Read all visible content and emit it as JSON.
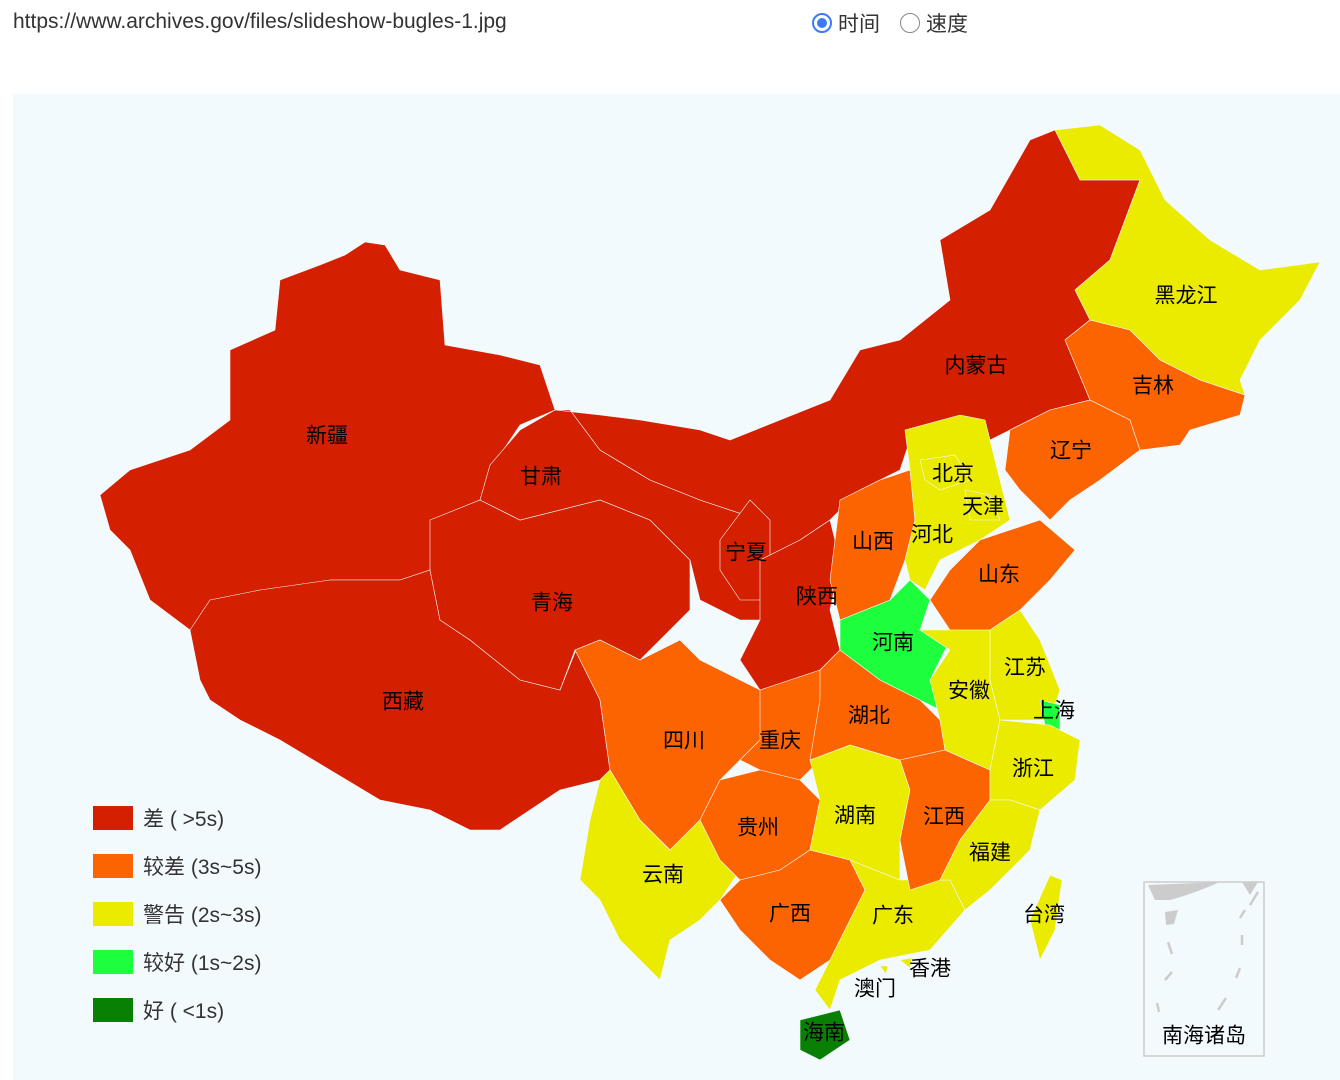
{
  "header": {
    "url": "https://www.archives.gov/files/slideshow-bugles-1.jpg",
    "radios": [
      {
        "label": "时间",
        "checked": true
      },
      {
        "label": "速度",
        "checked": false
      }
    ]
  },
  "legend": [
    {
      "label": "差 ( >5s)",
      "color": "#d41f00"
    },
    {
      "label": "较差 (3s~5s)",
      "color": "#fb6400"
    },
    {
      "label": "警告 (2s~3s)",
      "color": "#ebeb00"
    },
    {
      "label": "较好 (1s~2s)",
      "color": "#1dff3c"
    },
    {
      "label": "好 ( <1s)",
      "color": "#098003"
    }
  ],
  "provinces": [
    {
      "name": "新疆",
      "level": 0
    },
    {
      "name": "西藏",
      "level": 0
    },
    {
      "name": "青海",
      "level": 0
    },
    {
      "name": "甘肃",
      "level": 0
    },
    {
      "name": "内蒙古",
      "level": 0
    },
    {
      "name": "宁夏",
      "level": 0
    },
    {
      "name": "陕西",
      "level": 0
    },
    {
      "name": "四川",
      "level": 1
    },
    {
      "name": "重庆",
      "level": 1
    },
    {
      "name": "云南",
      "level": 2
    },
    {
      "name": "贵州",
      "level": 1
    },
    {
      "name": "广西",
      "level": 1
    },
    {
      "name": "广东",
      "level": 2
    },
    {
      "name": "海南",
      "level": 4
    },
    {
      "name": "湖南",
      "level": 2
    },
    {
      "name": "湖北",
      "level": 1
    },
    {
      "name": "江西",
      "level": 1
    },
    {
      "name": "河南",
      "level": 3
    },
    {
      "name": "山西",
      "level": 1
    },
    {
      "name": "河北",
      "level": 2
    },
    {
      "name": "北京",
      "level": 2
    },
    {
      "name": "天津",
      "level": 2
    },
    {
      "name": "山东",
      "level": 1
    },
    {
      "name": "辽宁",
      "level": 1
    },
    {
      "name": "吉林",
      "level": 1
    },
    {
      "name": "黑龙江",
      "level": 2
    },
    {
      "name": "安徽",
      "level": 2
    },
    {
      "name": "江苏",
      "level": 2
    },
    {
      "name": "上海",
      "level": 3
    },
    {
      "name": "浙江",
      "level": 2
    },
    {
      "name": "福建",
      "level": 2
    },
    {
      "name": "台湾",
      "level": 2
    },
    {
      "name": "香港",
      "level": 2
    },
    {
      "name": "澳门",
      "level": 2
    }
  ],
  "inset": {
    "label": "南海诸岛"
  }
}
